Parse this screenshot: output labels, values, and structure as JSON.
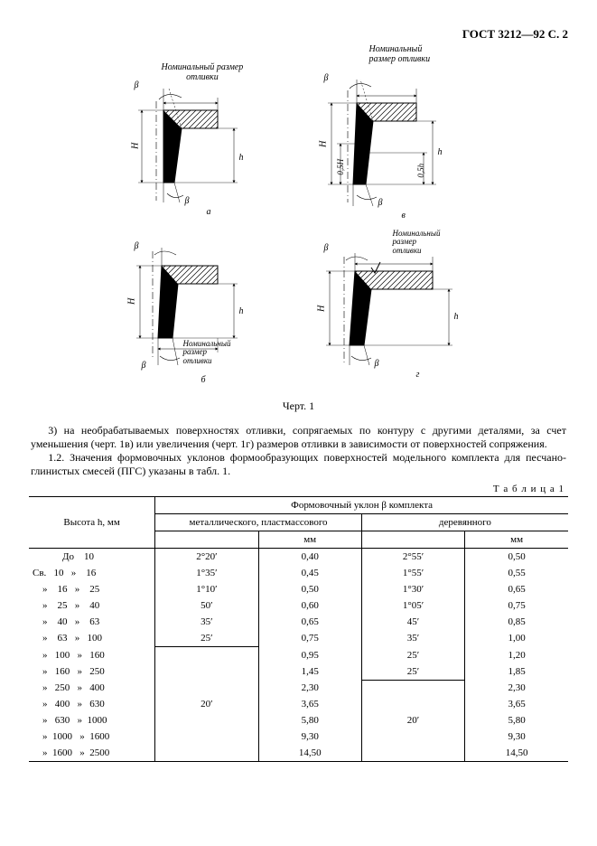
{
  "header": "ГОСТ 3212—92 С. 2",
  "figcaption": "Черт. 1",
  "diagram_labels": {
    "nominal": "Номинальный размер\nотливки",
    "nominal2": "Номинальный\nразмер отливки",
    "nominal3": "Номинальный\nразмер\nотливки",
    "beta": "β",
    "H": "H",
    "h": "h",
    "H05": "0,5H",
    "h05": "0,5h",
    "a": "а",
    "b": "б",
    "v": "в",
    "g": "г"
  },
  "paragraphs": {
    "p3": "3)  на необрабатываемых поверхностях отливки, сопрягаемых по контуру с другими деталями, за счет уменьшения (черт. 1в) или увеличения (черт. 1г) размеров отливки в зависимости от поверхностей сопряжения.",
    "p12": "1.2.  Значения формовочных уклонов формообразующих поверхностей модельного комплекта для песчано-глинистых смесей (ПГС) указаны в табл. 1."
  },
  "table_label": "Т а б л и ц а  1",
  "table": {
    "col_h": "Высота h, мм",
    "grp": "Формовочный уклон β комплекта",
    "sub1": "металлического, пластмассового",
    "sub2": "деревянного",
    "mm": "мм",
    "rows": [
      {
        "h": "            До    10",
        "a": "2°20′",
        "amm": "0,40",
        "b": "2°55′",
        "bmm": "0,50"
      },
      {
        "h": "Св.   10   »    16",
        "a": "1°35′",
        "amm": "0,45",
        "b": "1°55′",
        "bmm": "0,55"
      },
      {
        "h": "    »    16   »    25",
        "a": "1°10′",
        "amm": "0,50",
        "b": "1°30′",
        "bmm": "0,65"
      },
      {
        "h": "    »    25   »    40",
        "a": "50′",
        "amm": "0,60",
        "b": "1°05′",
        "bmm": "0,75"
      },
      {
        "h": "    »    40   »    63",
        "a": "35′",
        "amm": "0,65",
        "b": "45′",
        "bmm": "0,85"
      },
      {
        "h": "    »    63   »   100",
        "a": "25′",
        "amm": "0,75",
        "b": "35′",
        "bmm": "1,00"
      },
      {
        "h": "    »   100   »   160",
        "a": "",
        "amm": "0,95",
        "b": "25′",
        "bmm": "1,20"
      },
      {
        "h": "    »   160   »   250",
        "a": "",
        "amm": "1,45",
        "b": "25′",
        "bmm": "1,85"
      },
      {
        "h": "    »   250   »   400",
        "a": "20′",
        "amm": "2,30",
        "b": "",
        "bmm": "2,30"
      },
      {
        "h": "    »   400   »   630",
        "a": "",
        "amm": "3,65",
        "b": "20′",
        "bmm": "3,65"
      },
      {
        "h": "    »   630   »  1000",
        "a": "",
        "amm": "5,80",
        "b": "",
        "bmm": "5,80"
      },
      {
        "h": "    »  1000   »  1600",
        "a": "",
        "amm": "9,30",
        "b": "",
        "bmm": "9,30"
      },
      {
        "h": "    »  1600   »  2500",
        "a": "",
        "amm": "14,50",
        "b": "",
        "bmm": "14,50"
      }
    ],
    "merge_a_start": 6,
    "merge_b_start": 8
  }
}
